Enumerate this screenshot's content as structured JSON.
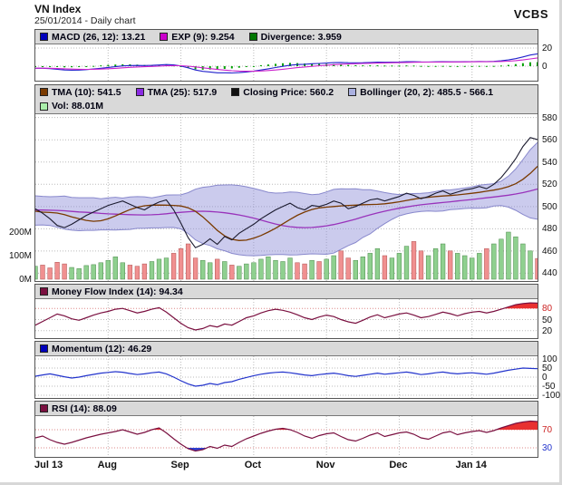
{
  "header": {
    "title": "VN Index",
    "subtitle": "25/01/2014 - Daily chart",
    "brand": "VCBS"
  },
  "panels": {
    "macd": {
      "legend": [
        {
          "label": "MACD (26, 12): 13.21",
          "color": "#0000bb"
        },
        {
          "label": "EXP (9): 9.254",
          "color": "#cc00cc"
        },
        {
          "label": "Divergence: 3.959",
          "color": "#007700"
        }
      ],
      "yticks": [
        {
          "v": 20,
          "label": "20"
        },
        {
          "v": 0,
          "label": "0"
        }
      ]
    },
    "main": {
      "legend": [
        {
          "label": "TMA (10): 541.5",
          "color": "#7a3a00"
        },
        {
          "label": "TMA (25): 517.9",
          "color": "#8a2be2"
        },
        {
          "label": "Closing Price: 560.2",
          "color": "#111111"
        },
        {
          "label": "Bollinger (20, 2): 485.5 - 566.1",
          "color": "#aab0e0"
        }
      ],
      "legend2": [
        {
          "label": "Vol: 88.01M",
          "color": "#aaeeaa"
        }
      ],
      "yticks": [
        {
          "v": 580,
          "label": "580"
        },
        {
          "v": 560,
          "label": "560"
        },
        {
          "v": 540,
          "label": "540"
        },
        {
          "v": 520,
          "label": "520"
        },
        {
          "v": 500,
          "label": "500"
        },
        {
          "v": 480,
          "label": "480"
        },
        {
          "v": 460,
          "label": "460"
        },
        {
          "v": 440,
          "label": "440"
        }
      ],
      "volticks": [
        {
          "v": 200,
          "label": "200M"
        },
        {
          "v": 100,
          "label": "100M"
        },
        {
          "v": 0,
          "label": "0M"
        }
      ]
    },
    "mfi": {
      "legend": [
        {
          "label": "Money Flow Index (14): 94.34",
          "color": "#7a1040"
        }
      ],
      "yticks": [
        {
          "v": 80,
          "label": "80",
          "color": "#cc2222"
        },
        {
          "v": 50,
          "label": "50"
        },
        {
          "v": 20,
          "label": "20"
        }
      ]
    },
    "mom": {
      "legend": [
        {
          "label": "Momentum (12): 46.29",
          "color": "#0000bb"
        }
      ],
      "yticks": [
        {
          "v": 100,
          "label": "100"
        },
        {
          "v": 50,
          "label": "50"
        },
        {
          "v": 0,
          "label": "0"
        },
        {
          "v": -50,
          "label": "-50"
        },
        {
          "v": -100,
          "label": "-100"
        }
      ]
    },
    "rsi": {
      "legend": [
        {
          "label": "RSI (14): 88.09",
          "color": "#7a1040"
        }
      ],
      "yticks": [
        {
          "v": 70,
          "label": "70",
          "color": "#cc2222"
        },
        {
          "v": 30,
          "label": "30",
          "color": "#2233cc"
        }
      ]
    }
  },
  "chart_data": {
    "type": "line",
    "title": "VN Index - Daily chart",
    "x_tick_labels": [
      "Jul 13",
      "Aug",
      "Sep",
      "Oct",
      "Nov",
      "Dec",
      "Jan 14"
    ],
    "x_tick_indices": [
      0,
      10,
      20,
      30,
      40,
      50,
      60
    ],
    "price_ylim": [
      440,
      580
    ],
    "series": {
      "close": [
        498,
        494,
        489,
        483,
        481,
        484,
        488,
        492,
        495,
        498,
        501,
        503,
        505,
        502,
        499,
        497,
        501,
        504,
        506,
        497,
        485,
        472,
        463,
        466,
        471,
        466,
        473,
        470,
        476,
        480,
        484,
        489,
        493,
        497,
        500,
        503,
        499,
        497,
        501,
        500,
        502,
        505,
        503,
        498,
        500,
        503,
        506,
        507,
        505,
        507,
        509,
        512,
        510,
        507,
        509,
        512,
        514,
        511,
        513,
        515,
        516,
        518,
        516,
        520,
        526,
        534,
        543,
        554,
        562,
        560.2
      ],
      "volume_m": [
        55,
        60,
        48,
        72,
        65,
        50,
        45,
        58,
        62,
        70,
        80,
        95,
        70,
        60,
        55,
        65,
        75,
        85,
        90,
        110,
        130,
        150,
        90,
        80,
        70,
        85,
        75,
        60,
        55,
        65,
        70,
        85,
        95,
        80,
        75,
        90,
        70,
        65,
        80,
        75,
        85,
        100,
        120,
        90,
        80,
        95,
        110,
        130,
        100,
        90,
        110,
        140,
        160,
        120,
        100,
        130,
        150,
        120,
        110,
        100,
        90,
        110,
        130,
        150,
        170,
        200,
        180,
        150,
        120,
        88
      ],
      "mfi": [
        35,
        45,
        55,
        65,
        60,
        52,
        48,
        55,
        62,
        68,
        72,
        78,
        80,
        74,
        68,
        72,
        78,
        82,
        70,
        55,
        40,
        28,
        22,
        26,
        34,
        30,
        38,
        35,
        45,
        55,
        60,
        68,
        74,
        78,
        75,
        70,
        63,
        55,
        50,
        57,
        62,
        58,
        50,
        44,
        40,
        48,
        57,
        63,
        55,
        60,
        65,
        68,
        62,
        55,
        58,
        64,
        70,
        66,
        60,
        66,
        70,
        72,
        68,
        72,
        78,
        84,
        90,
        93,
        95,
        94.34
      ],
      "momentum": [
        5,
        12,
        18,
        10,
        2,
        -5,
        0,
        8,
        15,
        22,
        26,
        30,
        27,
        20,
        14,
        18,
        24,
        28,
        18,
        0,
        -20,
        -38,
        -50,
        -45,
        -35,
        -42,
        -30,
        -25,
        -12,
        -2,
        8,
        16,
        22,
        26,
        28,
        24,
        18,
        12,
        8,
        14,
        18,
        22,
        16,
        8,
        4,
        10,
        16,
        22,
        16,
        20,
        24,
        28,
        22,
        14,
        18,
        24,
        28,
        22,
        18,
        22,
        24,
        20,
        16,
        22,
        30,
        38,
        44,
        50,
        48,
        46.29
      ],
      "rsi": [
        52,
        56,
        48,
        42,
        38,
        42,
        47,
        52,
        56,
        60,
        63,
        66,
        70,
        65,
        60,
        64,
        70,
        74,
        63,
        50,
        38,
        28,
        23,
        26,
        33,
        29,
        36,
        33,
        42,
        50,
        56,
        62,
        67,
        71,
        73,
        70,
        64,
        56,
        51,
        57,
        61,
        63,
        55,
        48,
        45,
        51,
        58,
        63,
        55,
        59,
        63,
        65,
        60,
        52,
        49,
        56,
        63,
        66,
        59,
        63,
        66,
        68,
        64,
        68,
        74,
        79,
        84,
        87,
        89,
        88.09
      ]
    },
    "indicator_params": {
      "macd": [
        26,
        12
      ],
      "macd_signal": 9,
      "tma": [
        10,
        25
      ],
      "bollinger": [
        20,
        2
      ],
      "mfi": 14,
      "momentum": 12,
      "rsi": 14
    },
    "last_values": {
      "macd": 13.21,
      "exp9": 9.254,
      "divergence": 3.959,
      "tma10": 541.5,
      "tma25": 517.9,
      "close": 560.2,
      "bollinger": "485.5 - 566.1",
      "volume": "88.01M",
      "mfi": 94.34,
      "momentum": 46.29,
      "rsi": 88.09
    }
  }
}
